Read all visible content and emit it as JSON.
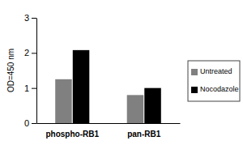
{
  "chart_data": {
    "type": "bar",
    "y_label": "OD=450 nm",
    "categories": [
      "phospho-RB1",
      "pan-RB1"
    ],
    "series": [
      {
        "name": "Untreated",
        "color": "#808080",
        "values": [
          1.25,
          0.8
        ]
      },
      {
        "name": "Nocodazole",
        "color": "#000000",
        "values": [
          2.08,
          1.0
        ]
      }
    ],
    "ylim": [
      0,
      3
    ],
    "yticks": [
      0,
      1,
      2,
      3
    ],
    "grid": false,
    "legend": "right"
  }
}
